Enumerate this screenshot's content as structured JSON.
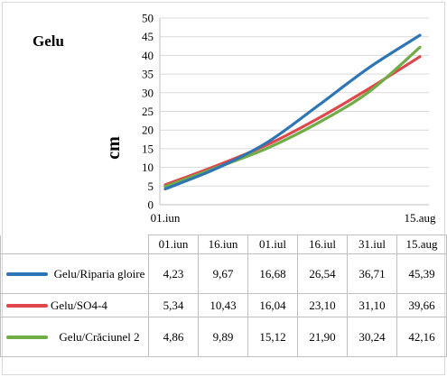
{
  "chart_data": {
    "type": "line",
    "title": "Gelu",
    "ylabel": "cm",
    "ylim": [
      0,
      50
    ],
    "yticks": [
      0,
      5,
      10,
      15,
      20,
      25,
      30,
      35,
      40,
      45,
      50
    ],
    "x_axis_labels": [
      "01.iun",
      "15.aug"
    ],
    "categories": [
      "01.iun",
      "16.iun",
      "01.iul",
      "16.iul",
      "31.iul",
      "15.aug"
    ],
    "grid": true,
    "series": [
      {
        "name": "Gelu/Riparia gloire",
        "color": "#2e75b6",
        "values": [
          4.23,
          9.67,
          16.68,
          26.54,
          36.71,
          45.39
        ],
        "labels": [
          "4,23",
          "9,67",
          "16,68",
          "26,54",
          "36,71",
          "45,39"
        ]
      },
      {
        "name": "Gelu/SO4-4",
        "color": "#e0474c",
        "values": [
          5.34,
          10.43,
          16.04,
          23.1,
          31.1,
          39.66
        ],
        "labels": [
          "5,34",
          "10,43",
          "16,04",
          "23,10",
          "31,10",
          "39,66"
        ]
      },
      {
        "name": "Gelu/Crăciunel 2",
        "color": "#70ad47",
        "values": [
          4.86,
          9.89,
          15.12,
          21.9,
          30.24,
          42.16
        ],
        "labels": [
          "4,86",
          "9,89",
          "15,12",
          "21,90",
          "30,24",
          "42,16"
        ]
      }
    ]
  }
}
